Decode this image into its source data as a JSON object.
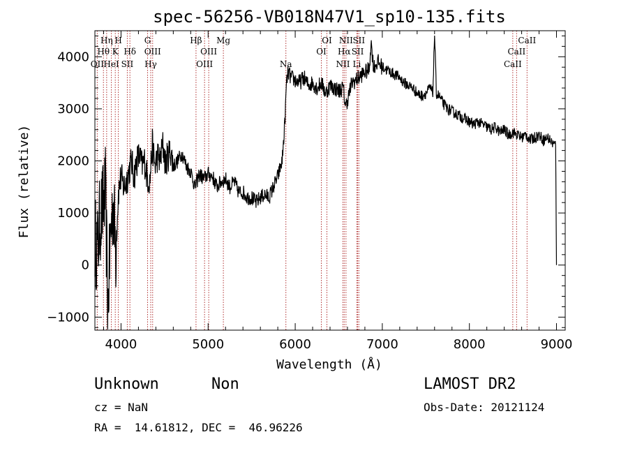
{
  "chart_data": {
    "type": "line",
    "title": "spec-56256-VB018N47V1_sp10-135.fits",
    "xlabel": "Wavelength (Å)",
    "ylabel": "Flux (relative)",
    "xlim": [
      3700,
      9100
    ],
    "ylim": [
      -1250,
      4500
    ],
    "xticks": [
      4000,
      5000,
      6000,
      7000,
      8000,
      9000
    ],
    "yticks": [
      -1000,
      0,
      1000,
      2000,
      3000,
      4000
    ],
    "grid": false,
    "line_color": "#000000",
    "marker_color": "#b03030",
    "series": [
      {
        "x": [
          3700,
          3730,
          3760,
          3790,
          3820,
          3850,
          3880,
          3910,
          3940,
          3970,
          4000,
          4030,
          4060,
          4090,
          4120,
          4150,
          4180,
          4210,
          4240,
          4270,
          4300,
          4330,
          4360,
          4390,
          4420,
          4450,
          4480,
          4510,
          4540,
          4570,
          4600,
          4650,
          4700,
          4750,
          4800,
          4850,
          4900,
          4950,
          5000,
          5050,
          5100,
          5150,
          5200,
          5250,
          5300,
          5350,
          5400,
          5450,
          5500,
          5550,
          5600,
          5650,
          5700,
          5750,
          5800,
          5850,
          5880,
          5900,
          5920,
          5950,
          6000,
          6050,
          6100,
          6150,
          6200,
          6250,
          6300,
          6350,
          6400,
          6450,
          6500,
          6550,
          6580,
          6620,
          6650,
          6700,
          6730,
          6760,
          6800,
          6850,
          6870,
          6900,
          6950,
          7000,
          7050,
          7100,
          7150,
          7200,
          7250,
          7300,
          7350,
          7400,
          7450,
          7500,
          7550,
          7580,
          7600,
          7620,
          7650,
          7700,
          7750,
          7800,
          7850,
          7900,
          7950,
          8000,
          8050,
          8100,
          8150,
          8200,
          8250,
          8300,
          8350,
          8400,
          8450,
          8500,
          8550,
          8600,
          8650,
          8700,
          8750,
          8800,
          8850,
          8900,
          8950,
          8990,
          9000
        ],
        "y": [
          500,
          300,
          900,
          1100,
          1400,
          -800,
          600,
          1200,
          300,
          1400,
          1700,
          1500,
          1600,
          1800,
          2000,
          1700,
          2000,
          2100,
          1900,
          2000,
          1700,
          1600,
          2300,
          1900,
          2100,
          2000,
          2300,
          1950,
          2100,
          2200,
          1900,
          2000,
          2150,
          1900,
          1800,
          1500,
          1750,
          1650,
          1750,
          1700,
          1500,
          1600,
          1650,
          1500,
          1600,
          1400,
          1400,
          1300,
          1300,
          1200,
          1300,
          1350,
          1300,
          1500,
          1700,
          2000,
          2700,
          3500,
          3700,
          3600,
          3550,
          3500,
          3600,
          3450,
          3500,
          3400,
          3500,
          3300,
          3450,
          3400,
          3350,
          3400,
          3050,
          3300,
          3500,
          3550,
          3600,
          3650,
          3700,
          3750,
          4300,
          3800,
          3900,
          3800,
          3750,
          3700,
          3650,
          3600,
          3500,
          3450,
          3400,
          3300,
          3250,
          3300,
          3400,
          3300,
          4450,
          3300,
          3250,
          3100,
          3000,
          2950,
          2900,
          2850,
          2800,
          2750,
          2700,
          2750,
          2700,
          2650,
          2600,
          2650,
          2550,
          2600,
          2500,
          2550,
          2500,
          2450,
          2500,
          2400,
          2450,
          2500,
          2400,
          2450,
          2350,
          2300,
          0
        ]
      }
    ],
    "line_markers": [
      {
        "name": "OII",
        "wavelength": 3727,
        "row": 3
      },
      {
        "name": "Hθ",
        "wavelength": 3798,
        "row": 2
      },
      {
        "name": "Hη",
        "wavelength": 3835,
        "row": 1
      },
      {
        "name": "HeI",
        "wavelength": 3889,
        "row": 3
      },
      {
        "name": "K",
        "wavelength": 3934,
        "row": 2
      },
      {
        "name": "H",
        "wavelength": 3969,
        "row": 1
      },
      {
        "name": "SII",
        "wavelength": 4072,
        "row": 3
      },
      {
        "name": "Hδ",
        "wavelength": 4102,
        "row": 2
      },
      {
        "name": "G",
        "wavelength": 4305,
        "row": 1
      },
      {
        "name": "Hγ",
        "wavelength": 4341,
        "row": 3
      },
      {
        "name": "OIII",
        "wavelength": 4363,
        "row": 2
      },
      {
        "name": "Hβ",
        "wavelength": 4861,
        "row": 1
      },
      {
        "name": "OIII",
        "wavelength": 4959,
        "row": 3
      },
      {
        "name": "OIII",
        "wavelength": 5007,
        "row": 2
      },
      {
        "name": "Mg",
        "wavelength": 5175,
        "row": 1
      },
      {
        "name": "Na",
        "wavelength": 5893,
        "row": 3
      },
      {
        "name": "OI",
        "wavelength": 6300,
        "row": 2
      },
      {
        "name": "OI",
        "wavelength": 6364,
        "row": 1
      },
      {
        "name": "NII",
        "wavelength": 6548,
        "row": 3
      },
      {
        "name": "Hα",
        "wavelength": 6563,
        "row": 2
      },
      {
        "name": "NII",
        "wavelength": 6583,
        "row": 1
      },
      {
        "name": "Li",
        "wavelength": 6708,
        "row": 3
      },
      {
        "name": "SII",
        "wavelength": 6717,
        "row": 2
      },
      {
        "name": "SII",
        "wavelength": 6731,
        "row": 1
      },
      {
        "name": "CaII",
        "wavelength": 8498,
        "row": 3
      },
      {
        "name": "CaII",
        "wavelength": 8542,
        "row": 2
      },
      {
        "name": "CaII",
        "wavelength": 8662,
        "row": 1
      }
    ]
  },
  "info": {
    "class_label": "Unknown",
    "subclass_label": "Non",
    "cz": "cz = NaN",
    "coords": "RA =  14.61812, DEC =  46.96226",
    "survey": "LAMOST DR2",
    "obs_date": "Obs-Date: 20121124"
  }
}
